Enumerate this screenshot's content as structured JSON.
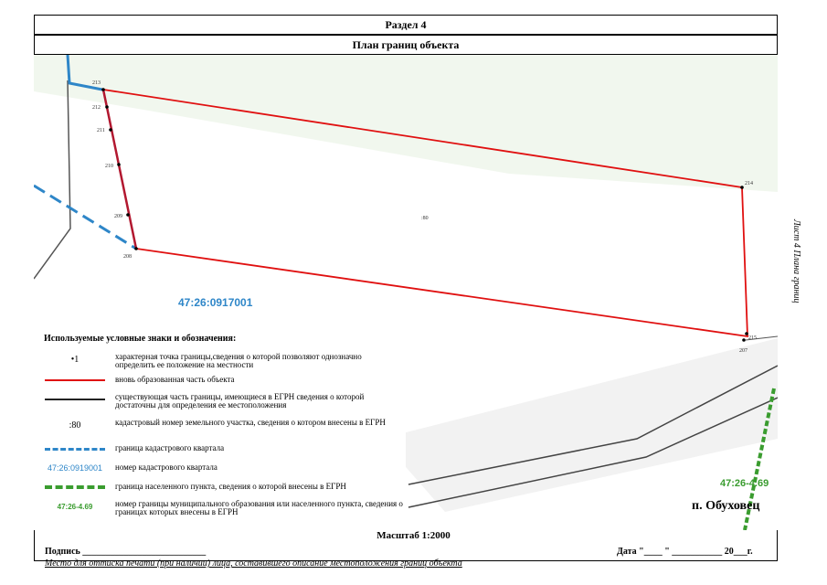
{
  "header": {
    "section": "Раздел 4",
    "plan_title": "План границ объекта"
  },
  "side_label": "Лист 4 Плана границ",
  "map": {
    "parcel_label": ":80",
    "quarter_number": "47:26:0917001",
    "settlement_code": "47:26-4.69",
    "settlement_name": "п. Обуховец",
    "points": [
      "213",
      "212",
      "211",
      "210",
      "209",
      "208",
      "214",
      "215",
      "207"
    ],
    "colors": {
      "new_part": "#e01010",
      "quarter_border": "#2e86c8",
      "settlement_border": "#3a9c2f",
      "existing": "#333333"
    }
  },
  "legend": {
    "title": "Используемые условные знаки и обозначения:",
    "items": [
      {
        "symbol": "•1",
        "text": "характерная точка границы,сведения о которой позволяют однозначно определить ее положение на местности"
      },
      {
        "symbol": "",
        "text": "вновь образованная часть объекта"
      },
      {
        "symbol": "",
        "text": "существующая часть границы, имеющиеся в ЕГРН сведения о которой достаточны для определения ее местоположения"
      },
      {
        "symbol": ":80",
        "text": "кадастровый номер земельного участка, сведения о котором внесены в ЕГРН"
      },
      {
        "symbol": "",
        "text": "граница кадастрового квартала"
      },
      {
        "symbol": "47:26:0919001",
        "text": "номер кадастрового квартала"
      },
      {
        "symbol": "",
        "text": "граница населенного пункта, сведения о которой внесены в ЕГРН"
      },
      {
        "symbol": "47:26-4.69",
        "text": "номер границы муниципального образования или населенного пункта, сведения о границах которых внесены в ЕГРН"
      }
    ]
  },
  "footer": {
    "scale": "Масштаб 1:2000",
    "signature": "Подпись ___________________________",
    "date": "Дата \"____ \" ___________ 20___г.",
    "stamp_note": "Место для оттиска печати (при наличии) лица, составившего описание местоположения границ объекта"
  }
}
